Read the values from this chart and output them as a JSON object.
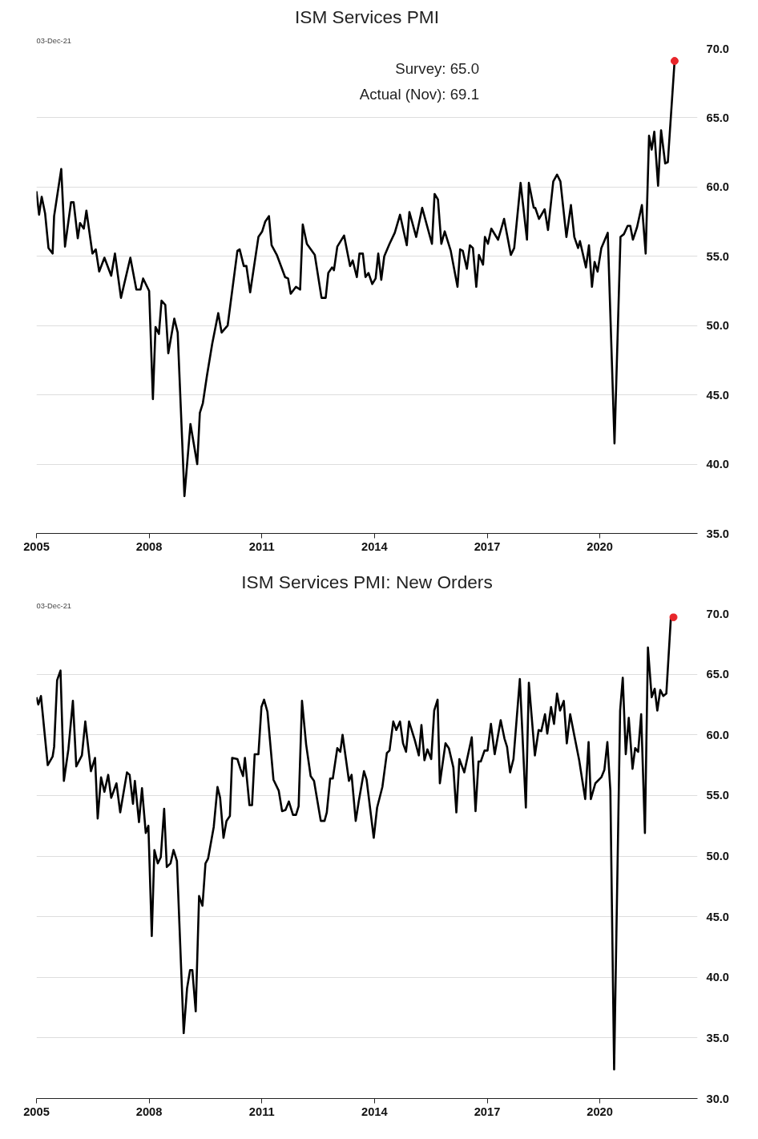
{
  "chart_data": [
    {
      "type": "line",
      "title": "ISM Services PMI",
      "annotations": [
        "03-Dec-21",
        "Survey:  65.0",
        "Actual (Nov):  69.1"
      ],
      "xlim": [
        2005,
        2022.6
      ],
      "xticks": [
        2005,
        2008,
        2011,
        2014,
        2017,
        2020
      ],
      "ylim": [
        35,
        70
      ],
      "yticks": [
        {
          "value": 35,
          "label": "35.0"
        },
        {
          "value": 40,
          "label": "40.0"
        },
        {
          "value": 45,
          "label": "45.0"
        },
        {
          "value": 50,
          "label": "50.0"
        },
        {
          "value": 55,
          "label": "55.0"
        },
        {
          "value": 60,
          "label": "60.0"
        },
        {
          "value": 65,
          "label": "65.0"
        },
        {
          "value": 70,
          "label": "70.0"
        }
      ],
      "grid": "y",
      "line_style": "solid",
      "series": [
        {
          "color": "#000000",
          "x": [
            2005.0,
            2005.07,
            2005.14,
            2005.23,
            2005.32,
            2005.43,
            2005.47,
            2005.66,
            2005.76,
            2005.92,
            2005.99,
            2006.1,
            2006.16,
            2006.26,
            2006.33,
            2006.49,
            2006.58,
            2006.67,
            2006.81,
            2006.99,
            2007.09,
            2007.25,
            2007.5,
            2007.66,
            2007.77,
            2007.84,
            2008.0,
            2008.1,
            2008.17,
            2008.26,
            2008.33,
            2008.43,
            2008.51,
            2008.67,
            2008.76,
            2008.94,
            2009.1,
            2009.28,
            2009.35,
            2009.43,
            2009.54,
            2009.68,
            2009.84,
            2009.93,
            2010.09,
            2010.35,
            2010.41,
            2010.52,
            2010.59,
            2010.69,
            2010.91,
            2011.01,
            2011.09,
            2011.19,
            2011.26,
            2011.4,
            2011.62,
            2011.7,
            2011.77,
            2011.91,
            2012.02,
            2012.09,
            2012.2,
            2012.41,
            2012.59,
            2012.7,
            2012.77,
            2012.87,
            2012.92,
            2013.01,
            2013.19,
            2013.35,
            2013.42,
            2013.53,
            2013.6,
            2013.69,
            2013.76,
            2013.84,
            2013.94,
            2014.03,
            2014.1,
            2014.18,
            2014.26,
            2014.4,
            2014.54,
            2014.68,
            2014.86,
            2014.93,
            2015.11,
            2015.27,
            2015.53,
            2015.6,
            2015.69,
            2015.78,
            2015.87,
            2016.03,
            2016.21,
            2016.28,
            2016.35,
            2016.46,
            2016.54,
            2016.62,
            2016.71,
            2016.78,
            2016.89,
            2016.94,
            2017.02,
            2017.11,
            2017.29,
            2017.45,
            2017.63,
            2017.72,
            2017.89,
            2018.06,
            2018.11,
            2018.24,
            2018.28,
            2018.38,
            2018.53,
            2018.62,
            2018.76,
            2018.86,
            2018.95,
            2019.11,
            2019.23,
            2019.32,
            2019.42,
            2019.47,
            2019.63,
            2019.71,
            2019.79,
            2019.86,
            2019.94,
            2020.04,
            2020.21,
            2020.39,
            2020.55,
            2020.64,
            2020.74,
            2020.81,
            2020.88,
            2020.99,
            2021.12,
            2021.22,
            2021.31,
            2021.38,
            2021.45,
            2021.55,
            2021.63,
            2021.74,
            2021.81,
            2021.99
          ],
          "values": [
            59.7,
            58.0,
            59.3,
            58.1,
            55.6,
            55.2,
            57.9,
            61.3,
            55.7,
            58.9,
            58.9,
            56.3,
            57.4,
            57.0,
            58.3,
            55.2,
            55.5,
            53.9,
            54.9,
            53.6,
            55.2,
            52.0,
            54.9,
            52.6,
            52.6,
            53.4,
            52.5,
            44.7,
            49.9,
            49.4,
            51.8,
            51.5,
            48.0,
            50.5,
            49.5,
            37.7,
            42.9,
            40.0,
            43.7,
            44.4,
            46.4,
            48.7,
            50.9,
            49.5,
            50.0,
            55.4,
            55.5,
            54.3,
            54.3,
            52.4,
            56.4,
            56.8,
            57.5,
            57.9,
            55.8,
            55.1,
            53.5,
            53.4,
            52.3,
            52.8,
            52.6,
            57.3,
            55.9,
            55.1,
            52.0,
            52.0,
            53.8,
            54.2,
            54.0,
            55.7,
            56.5,
            54.3,
            54.7,
            53.5,
            55.2,
            55.2,
            53.5,
            53.8,
            53.0,
            53.4,
            55.2,
            53.3,
            55.0,
            55.9,
            56.7,
            58.0,
            55.8,
            58.2,
            56.4,
            58.5,
            55.9,
            59.5,
            59.1,
            55.9,
            56.8,
            55.4,
            52.8,
            55.5,
            55.4,
            54.1,
            55.8,
            55.6,
            52.8,
            55.1,
            54.4,
            56.4,
            55.9,
            57.0,
            56.2,
            57.7,
            55.1,
            55.6,
            60.3,
            56.2,
            60.3,
            58.5,
            58.5,
            57.7,
            58.4,
            56.9,
            60.4,
            60.9,
            60.4,
            56.4,
            58.7,
            56.4,
            55.6,
            56.1,
            54.2,
            55.8,
            52.8,
            54.6,
            53.9,
            55.6,
            56.7,
            41.5,
            56.4,
            56.6,
            57.2,
            57.2,
            56.2,
            57.1,
            58.7,
            55.2,
            63.7,
            62.7,
            64.0,
            60.1,
            64.1,
            61.7,
            61.8,
            69.1
          ]
        },
        {
          "type": "scatter",
          "marker": "circle",
          "color": "#e8262b",
          "x": [
            2021.99
          ],
          "values": [
            69.1
          ]
        }
      ]
    },
    {
      "type": "line",
      "title": "ISM Services PMI: New Orders",
      "annotations": [
        "03-Dec-21"
      ],
      "xlim": [
        2005,
        2022.6
      ],
      "xticks": [
        2005,
        2008,
        2011,
        2014,
        2017,
        2020
      ],
      "ylim": [
        30,
        70
      ],
      "yticks": [
        {
          "value": 30,
          "label": "30.0"
        },
        {
          "value": 35,
          "label": "35.0"
        },
        {
          "value": 40,
          "label": "40.0"
        },
        {
          "value": 45,
          "label": "45.0"
        },
        {
          "value": 50,
          "label": "50.0"
        },
        {
          "value": 55,
          "label": "55.0"
        },
        {
          "value": 60,
          "label": "60.0"
        },
        {
          "value": 65,
          "label": "65.0"
        },
        {
          "value": 70,
          "label": "70.0"
        }
      ],
      "grid": "y",
      "line_style": "solid",
      "series": [
        {
          "color": "#000000",
          "x": [
            2005.0,
            2005.05,
            2005.12,
            2005.3,
            2005.43,
            2005.47,
            2005.55,
            2005.64,
            2005.73,
            2005.85,
            2005.97,
            2006.06,
            2006.21,
            2006.3,
            2006.45,
            2006.56,
            2006.63,
            2006.72,
            2006.81,
            2006.91,
            2006.99,
            2007.13,
            2007.23,
            2007.41,
            2007.48,
            2007.57,
            2007.62,
            2007.73,
            2007.81,
            2007.91,
            2007.98,
            2008.07,
            2008.14,
            2008.23,
            2008.31,
            2008.4,
            2008.47,
            2008.57,
            2008.65,
            2008.74,
            2008.92,
            2009.01,
            2009.09,
            2009.15,
            2009.24,
            2009.33,
            2009.42,
            2009.5,
            2009.57,
            2009.72,
            2009.82,
            2009.89,
            2009.98,
            2010.06,
            2010.15,
            2010.21,
            2010.35,
            2010.43,
            2010.5,
            2010.55,
            2010.67,
            2010.74,
            2010.81,
            2010.91,
            2010.99,
            2011.06,
            2011.15,
            2011.31,
            2011.45,
            2011.54,
            2011.63,
            2011.72,
            2011.83,
            2011.91,
            2011.98,
            2012.07,
            2012.18,
            2012.3,
            2012.39,
            2012.57,
            2012.67,
            2012.73,
            2012.82,
            2012.89,
            2013.01,
            2013.09,
            2013.15,
            2013.32,
            2013.39,
            2013.5,
            2013.58,
            2013.72,
            2013.79,
            2013.98,
            2014.07,
            2014.21,
            2014.33,
            2014.4,
            2014.5,
            2014.58,
            2014.68,
            2014.76,
            2014.84,
            2014.92,
            2015.07,
            2015.18,
            2015.25,
            2015.33,
            2015.41,
            2015.51,
            2015.59,
            2015.68,
            2015.74,
            2015.89,
            2015.98,
            2016.1,
            2016.18,
            2016.26,
            2016.39,
            2016.59,
            2016.69,
            2016.77,
            2016.83,
            2016.93,
            2017.01,
            2017.1,
            2017.2,
            2017.36,
            2017.46,
            2017.53,
            2017.61,
            2017.7,
            2017.87,
            2018.03,
            2018.11,
            2018.27,
            2018.37,
            2018.44,
            2018.54,
            2018.6,
            2018.7,
            2018.78,
            2018.86,
            2018.94,
            2019.04,
            2019.12,
            2019.21,
            2019.31,
            2019.45,
            2019.61,
            2019.7,
            2019.76,
            2019.88,
            2020.04,
            2020.12,
            2020.2,
            2020.28,
            2020.38,
            2020.54,
            2020.61,
            2020.69,
            2020.77,
            2020.87,
            2020.94,
            2021.02,
            2021.1,
            2021.2,
            2021.28,
            2021.38,
            2021.46,
            2021.53,
            2021.61,
            2021.69,
            2021.77,
            2021.89,
            2021.96
          ],
          "values": [
            63.1,
            62.5,
            63.2,
            57.5,
            58.2,
            59.0,
            64.5,
            65.3,
            56.2,
            58.8,
            62.8,
            57.4,
            58.3,
            61.1,
            57.0,
            58.1,
            53.1,
            56.5,
            55.3,
            56.7,
            54.8,
            56.0,
            53.6,
            56.9,
            56.7,
            54.3,
            56.2,
            52.8,
            55.6,
            51.9,
            52.5,
            43.4,
            50.5,
            49.4,
            49.9,
            53.9,
            49.1,
            49.4,
            50.5,
            49.6,
            35.4,
            39.1,
            40.6,
            40.6,
            37.2,
            46.7,
            45.9,
            49.4,
            49.8,
            52.4,
            55.7,
            54.8,
            51.5,
            52.9,
            53.3,
            58.1,
            58.0,
            57.2,
            56.6,
            58.1,
            54.2,
            54.2,
            58.4,
            58.4,
            62.3,
            62.9,
            61.9,
            56.3,
            55.4,
            53.7,
            53.8,
            54.5,
            53.4,
            53.4,
            54.1,
            62.8,
            59.2,
            56.6,
            56.2,
            52.9,
            52.9,
            53.6,
            56.4,
            56.4,
            58.9,
            58.6,
            60.0,
            56.2,
            56.7,
            52.9,
            54.5,
            57.0,
            56.3,
            51.5,
            54.0,
            55.7,
            58.5,
            58.7,
            61.1,
            60.4,
            61.1,
            59.3,
            58.6,
            61.1,
            59.6,
            58.3,
            60.8,
            57.9,
            58.8,
            58.0,
            62.0,
            62.9,
            56.0,
            59.3,
            58.9,
            57.3,
            53.6,
            58.0,
            56.9,
            59.8,
            53.7,
            57.8,
            57.8,
            58.7,
            58.7,
            60.9,
            58.4,
            61.2,
            59.7,
            59.0,
            56.9,
            58.0,
            64.6,
            54.0,
            64.3,
            58.3,
            60.4,
            60.3,
            61.7,
            60.1,
            62.3,
            60.9,
            63.4,
            62.0,
            62.8,
            59.3,
            61.7,
            60.1,
            57.9,
            54.7,
            59.4,
            54.7,
            56.0,
            56.5,
            57.1,
            59.4,
            55.4,
            32.4,
            62.0,
            64.7,
            58.4,
            61.4,
            57.2,
            58.9,
            58.6,
            61.7,
            51.9,
            67.2,
            63.1,
            63.8,
            62.0,
            63.7,
            63.2,
            63.4,
            69.6,
            69.7
          ]
        },
        {
          "type": "scatter",
          "marker": "circle",
          "color": "#e8262b",
          "x": [
            2021.96
          ],
          "values": [
            69.7
          ]
        }
      ]
    }
  ]
}
